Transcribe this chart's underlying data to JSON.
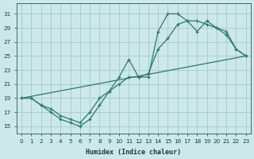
{
  "xlabel": "Humidex (Indice chaleur)",
  "ylabel": "",
  "bg_color": "#cce8e8",
  "grid_color": "#aacece",
  "line_color": "#2a7a6a",
  "xlim": [
    -0.5,
    23.5
  ],
  "ylim": [
    14,
    32.5
  ],
  "yticks": [
    15,
    17,
    19,
    21,
    23,
    25,
    27,
    29,
    31
  ],
  "xticks": [
    0,
    1,
    2,
    3,
    4,
    5,
    6,
    7,
    8,
    9,
    10,
    11,
    12,
    13,
    14,
    15,
    16,
    17,
    18,
    19,
    20,
    21,
    22,
    23
  ],
  "line1_x": [
    0,
    1,
    2,
    3,
    4,
    5,
    6,
    7,
    8,
    9,
    10,
    11,
    12,
    13,
    14,
    15,
    16,
    17,
    18,
    19,
    20,
    21,
    22,
    23
  ],
  "line1_y": [
    19,
    19,
    18,
    17,
    16,
    15.5,
    15,
    16,
    18,
    20,
    22,
    24.5,
    22,
    22,
    28.5,
    31,
    31,
    30,
    30,
    29.5,
    29,
    28,
    26,
    25
  ],
  "line2_x": [
    0,
    1,
    2,
    3,
    4,
    5,
    6,
    7,
    8,
    9,
    10,
    11,
    12,
    13,
    14,
    15,
    16,
    17,
    18,
    19,
    20,
    21,
    22,
    23
  ],
  "line2_y": [
    19,
    19,
    18,
    17.5,
    16.5,
    16,
    15.5,
    17,
    19,
    20,
    21,
    22,
    22,
    22.5,
    26,
    27.5,
    29.5,
    30,
    28.5,
    30,
    29,
    28.5,
    26,
    25
  ],
  "line3_x": [
    0,
    23
  ],
  "line3_y": [
    19,
    25
  ]
}
